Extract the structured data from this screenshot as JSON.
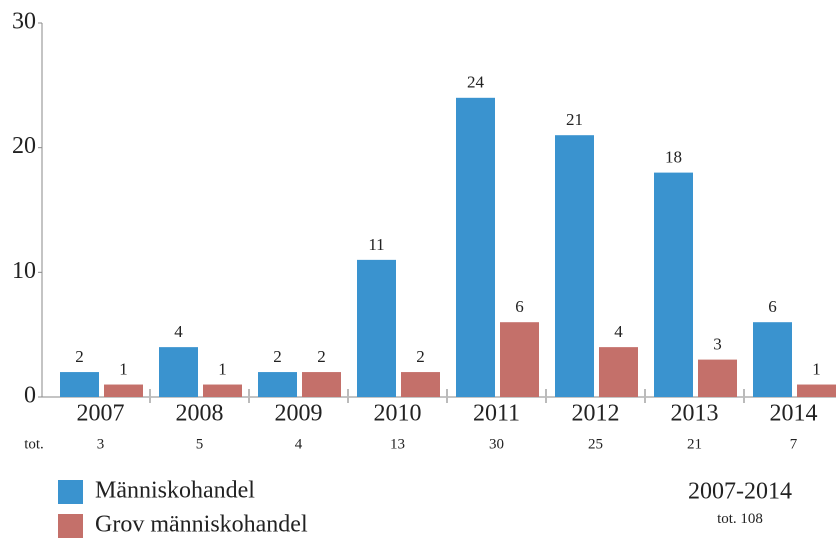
{
  "chart_data": {
    "type": "bar",
    "categories": [
      "2007",
      "2008",
      "2009",
      "2010",
      "2011",
      "2012",
      "2013",
      "2014"
    ],
    "series": [
      {
        "name": "Människohandel",
        "color": "#3a93cf",
        "values": [
          2,
          4,
          2,
          11,
          24,
          21,
          18,
          6
        ]
      },
      {
        "name": "Grov människohandel",
        "color": "#c4706a",
        "values": [
          1,
          1,
          2,
          2,
          6,
          4,
          3,
          1
        ]
      }
    ],
    "ylim": [
      0,
      30
    ],
    "yticks": [
      0,
      10,
      20,
      30
    ],
    "grid": false,
    "totals_label": "tot.",
    "totals": [
      3,
      5,
      4,
      13,
      30,
      25,
      21,
      7
    ],
    "period": "2007-2014",
    "period_total": 108
  }
}
